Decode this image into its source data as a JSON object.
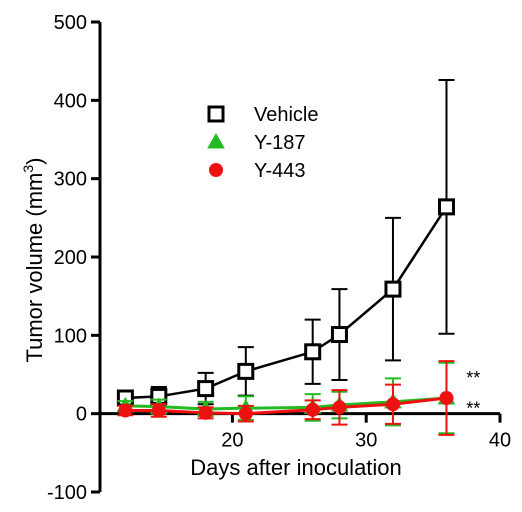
{
  "chart_data": {
    "type": "line",
    "xlabel": "Days after inoculation",
    "ylabel": "Tumor volume (mm",
    "ylabel_sup": "3",
    "ylabel_close": ")",
    "xlim": [
      11,
      40
    ],
    "ylim": [
      -100,
      500
    ],
    "x_ticks": [
      20,
      30,
      40
    ],
    "x_tick_labels": [
      "20",
      "30",
      "40"
    ],
    "y_ticks": [
      -100,
      0,
      100,
      200,
      300,
      400,
      500
    ],
    "y_tick_labels": [
      "-100",
      "0",
      "100",
      "200",
      "300",
      "400",
      "500"
    ],
    "grid": false,
    "legend_position": "top-left",
    "series": [
      {
        "name": "Vehicle",
        "color": "#000000",
        "marker": "open-square",
        "points": [
          {
            "x": 12,
            "y": 20,
            "err": 8
          },
          {
            "x": 14.5,
            "y": 22,
            "err": 12
          },
          {
            "x": 18,
            "y": 32,
            "err": 20
          },
          {
            "x": 21,
            "y": 54,
            "err": 31
          },
          {
            "x": 26,
            "y": 79,
            "err": 41
          },
          {
            "x": 28,
            "y": 101,
            "err": 58
          },
          {
            "x": 32,
            "y": 159,
            "err": 91
          },
          {
            "x": 36,
            "y": 264,
            "err": 162
          }
        ]
      },
      {
        "name": "Y-187",
        "color": "#22bb22",
        "marker": "triangle",
        "points": [
          {
            "x": 12,
            "y": 10,
            "err": 6
          },
          {
            "x": 14.5,
            "y": 9,
            "err": 9
          },
          {
            "x": 18,
            "y": 6,
            "err": 9
          },
          {
            "x": 21,
            "y": 7,
            "err": 15
          },
          {
            "x": 26,
            "y": 8,
            "err": 17
          },
          {
            "x": 28,
            "y": 11,
            "err": 17
          },
          {
            "x": 32,
            "y": 15,
            "err": 30
          },
          {
            "x": 36,
            "y": 20,
            "err": 45
          }
        ]
      },
      {
        "name": "Y-443",
        "color": "#ee1111",
        "marker": "circle",
        "points": [
          {
            "x": 12,
            "y": 4,
            "err": 6
          },
          {
            "x": 14.5,
            "y": 4,
            "err": 8
          },
          {
            "x": 18,
            "y": 1,
            "err": 7
          },
          {
            "x": 21,
            "y": 0,
            "err": 10
          },
          {
            "x": 26,
            "y": 5,
            "err": 12
          },
          {
            "x": 28,
            "y": 8,
            "err": 22
          },
          {
            "x": 32,
            "y": 12,
            "err": 25
          },
          {
            "x": 36,
            "y": 20,
            "err": 47
          }
        ]
      }
    ],
    "annotations": [
      {
        "text": "**",
        "x": 38,
        "y": 47
      },
      {
        "text": "**",
        "x": 38,
        "y": 8
      }
    ]
  }
}
